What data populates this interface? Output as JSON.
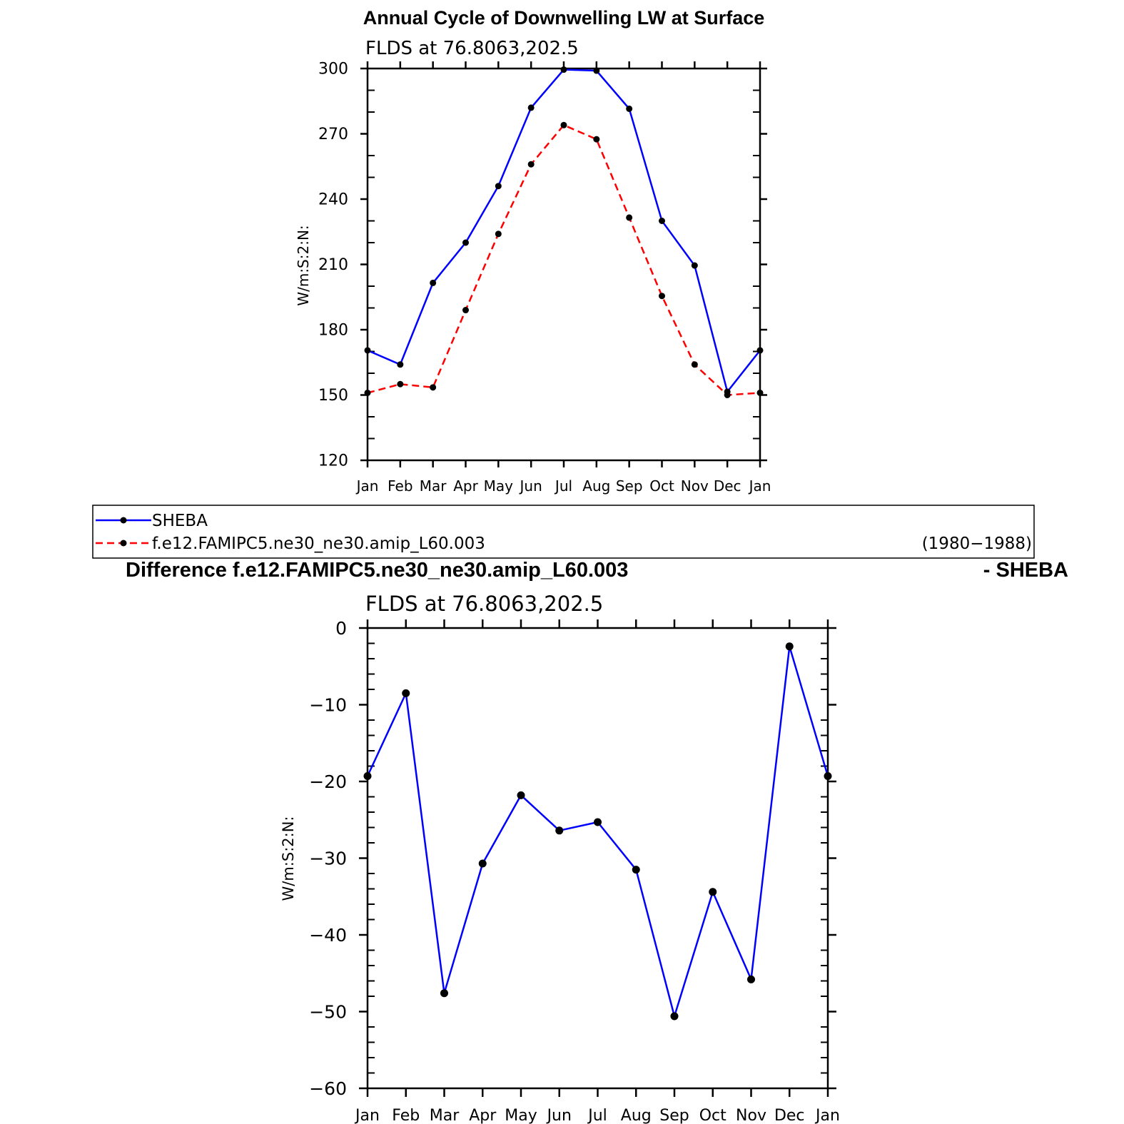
{
  "chart_data": [
    {
      "type": "line",
      "title": "Annual Cycle of Downwelling LW at Surface",
      "subtitle": "FLDS at 76.8063,202.5",
      "xlabel": "",
      "ylabel": "W/m:S:2:N:",
      "categories": [
        "Jan",
        "Feb",
        "Mar",
        "Apr",
        "May",
        "Jun",
        "Jul",
        "Aug",
        "Sep",
        "Oct",
        "Nov",
        "Dec",
        "Jan"
      ],
      "ylim": [
        120,
        300
      ],
      "yticks": [
        "120",
        "150",
        "180",
        "210",
        "240",
        "270",
        "300"
      ],
      "series": [
        {
          "name": "SHEBA",
          "color": "#0000ff",
          "dash": "solid",
          "values": [
            170.5,
            164,
            201.5,
            220,
            246,
            282,
            299.5,
            299,
            281.5,
            230,
            209.5,
            151.5,
            170.5
          ]
        },
        {
          "name": "f.e12.FAMIPC5.ne30_ne30.amip_L60.003",
          "color": "#ff0000",
          "dash": "dashed",
          "values": [
            151,
            155,
            153.5,
            189,
            224,
            256,
            274,
            267.5,
            231.5,
            195.5,
            164,
            150,
            151
          ]
        }
      ],
      "legend": {
        "placement": "bottom",
        "period": "(1980−1988)"
      }
    },
    {
      "type": "line",
      "title": "Difference f.e12.FAMIPC5.ne30_ne30.amip_L60.003",
      "title_suffix": "- SHEBA",
      "subtitle": "FLDS at 76.8063,202.5",
      "xlabel": "",
      "ylabel": "W/m:S:2:N:",
      "categories": [
        "Jan",
        "Feb",
        "Mar",
        "Apr",
        "May",
        "Jun",
        "Jul",
        "Aug",
        "Sep",
        "Oct",
        "Nov",
        "Dec",
        "Jan"
      ],
      "ylim": [
        -60,
        0
      ],
      "yticks": [
        "−60",
        "−50",
        "−40",
        "−30",
        "−20",
        "−10",
        "0"
      ],
      "series": [
        {
          "color": "#0000ff",
          "dash": "solid",
          "values": [
            -19.3,
            -8.5,
            -47.6,
            -30.7,
            -21.8,
            -26.4,
            -25.3,
            -31.5,
            -50.6,
            -34.4,
            -45.8,
            -2.4,
            -19.3
          ]
        }
      ]
    }
  ]
}
